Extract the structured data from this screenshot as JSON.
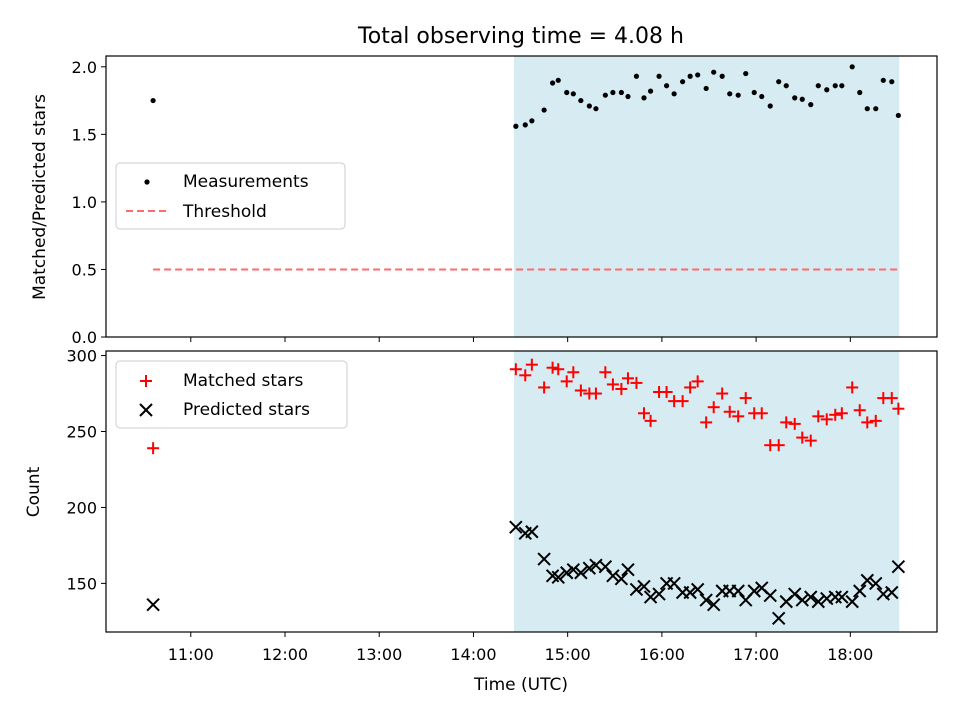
{
  "chart_data": {
    "type": "scatter",
    "title": "Total observing time = 4.08 h",
    "xlabel": "Time (UTC)",
    "x_tick_labels": [
      "11:00",
      "12:00",
      "13:00",
      "14:00",
      "15:00",
      "16:00",
      "17:00",
      "18:00"
    ],
    "x_ticks_hours": [
      11,
      12,
      13,
      14,
      15,
      16,
      17,
      18
    ],
    "xlim_hours": [
      10.1,
      18.92
    ],
    "shaded_span_hours": [
      14.43,
      18.52
    ],
    "shade_color": "#add8e6",
    "panels": [
      {
        "ylabel": "Matched/Predicted stars",
        "ylim": [
          0,
          2.08
        ],
        "yticks": [
          0.0,
          0.5,
          1.0,
          1.5,
          2.0
        ],
        "ytick_labels": [
          "0.0",
          "0.5",
          "1.0",
          "1.5",
          "2.0"
        ],
        "legend": {
          "position": "center-left",
          "entries": [
            "Measurements",
            "Threshold"
          ]
        },
        "series": [
          {
            "name": "Measurements",
            "kind": "scatter",
            "marker": "dot",
            "color": "#000000",
            "x": [
              10.6,
              14.45,
              14.55,
              14.62,
              14.75,
              14.84,
              14.9,
              14.99,
              15.06,
              15.14,
              15.23,
              15.3,
              15.4,
              15.48,
              15.57,
              15.64,
              15.73,
              15.81,
              15.88,
              15.97,
              16.05,
              16.13,
              16.22,
              16.3,
              16.38,
              16.47,
              16.55,
              16.64,
              16.72,
              16.81,
              16.89,
              16.98,
              17.06,
              17.15,
              17.24,
              17.32,
              17.41,
              17.49,
              17.58,
              17.66,
              17.75,
              17.84,
              17.91,
              18.02,
              18.1,
              18.18,
              18.27,
              18.35,
              18.44,
              18.51
            ],
            "y": [
              1.75,
              1.56,
              1.57,
              1.6,
              1.68,
              1.88,
              1.9,
              1.81,
              1.8,
              1.75,
              1.71,
              1.69,
              1.79,
              1.81,
              1.81,
              1.78,
              1.93,
              1.77,
              1.82,
              1.93,
              1.86,
              1.8,
              1.89,
              1.93,
              1.94,
              1.84,
              1.96,
              1.93,
              1.8,
              1.79,
              1.95,
              1.81,
              1.78,
              1.71,
              1.89,
              1.86,
              1.77,
              1.76,
              1.72,
              1.86,
              1.83,
              1.86,
              1.86,
              2.0,
              1.81,
              1.69,
              1.69,
              1.9,
              1.89,
              1.64
            ]
          },
          {
            "name": "Threshold",
            "kind": "line",
            "style": "dashed",
            "color": "#ff6b6b",
            "x": [
              10.6,
              18.52
            ],
            "y": [
              0.5,
              0.5
            ]
          }
        ]
      },
      {
        "ylabel": "Count",
        "ylim": [
          118,
          303
        ],
        "yticks": [
          150,
          200,
          250,
          300
        ],
        "ytick_labels": [
          "150",
          "200",
          "250",
          "300"
        ],
        "legend": {
          "position": "top-left",
          "entries": [
            "Matched stars",
            "Predicted stars"
          ]
        },
        "series": [
          {
            "name": "Matched stars",
            "kind": "scatter",
            "marker": "plus",
            "color": "#ff0000",
            "x": [
              10.6,
              14.45,
              14.55,
              14.62,
              14.75,
              14.84,
              14.9,
              14.99,
              15.06,
              15.14,
              15.23,
              15.3,
              15.4,
              15.48,
              15.57,
              15.64,
              15.73,
              15.81,
              15.88,
              15.97,
              16.05,
              16.13,
              16.22,
              16.3,
              16.38,
              16.47,
              16.55,
              16.64,
              16.72,
              16.81,
              16.89,
              16.98,
              17.06,
              17.15,
              17.24,
              17.32,
              17.41,
              17.49,
              17.58,
              17.66,
              17.75,
              17.84,
              17.91,
              18.02,
              18.1,
              18.18,
              18.27,
              18.35,
              18.44,
              18.51
            ],
            "y": [
              239,
              291,
              287,
              294,
              279,
              292,
              291,
              283,
              289,
              277,
              275,
              275,
              289,
              281,
              278,
              285,
              282,
              262,
              257,
              276,
              276,
              270,
              270,
              279,
              283,
              256,
              266,
              275,
              263,
              260,
              272,
              262,
              262,
              241,
              241,
              256,
              255,
              246,
              244,
              260,
              258,
              261,
              262,
              279,
              264,
              256,
              257,
              272,
              272,
              265
            ]
          },
          {
            "name": "Predicted stars",
            "kind": "scatter",
            "marker": "x",
            "color": "#000000",
            "x": [
              10.6,
              14.45,
              14.55,
              14.62,
              14.75,
              14.84,
              14.9,
              14.99,
              15.06,
              15.14,
              15.23,
              15.3,
              15.4,
              15.48,
              15.57,
              15.64,
              15.73,
              15.81,
              15.88,
              15.97,
              16.05,
              16.13,
              16.22,
              16.3,
              16.38,
              16.47,
              16.55,
              16.64,
              16.72,
              16.81,
              16.89,
              16.98,
              17.06,
              17.15,
              17.24,
              17.32,
              17.41,
              17.49,
              17.58,
              17.66,
              17.75,
              17.84,
              17.91,
              18.02,
              18.1,
              18.18,
              18.27,
              18.35,
              18.44,
              18.51
            ],
            "y": [
              136,
              187,
              183,
              184,
              166,
              155,
              154,
              157,
              159,
              157,
              160,
              162,
              161,
              155,
              153,
              159,
              146,
              148,
              141,
              143,
              150,
              150,
              144,
              144,
              146,
              139,
              136,
              145,
              145,
              145,
              139,
              145,
              147,
              142,
              127,
              138,
              143,
              139,
              141,
              138,
              140,
              141,
              141,
              138,
              145,
              152,
              150,
              143,
              144,
              161
            ]
          }
        ]
      }
    ]
  }
}
